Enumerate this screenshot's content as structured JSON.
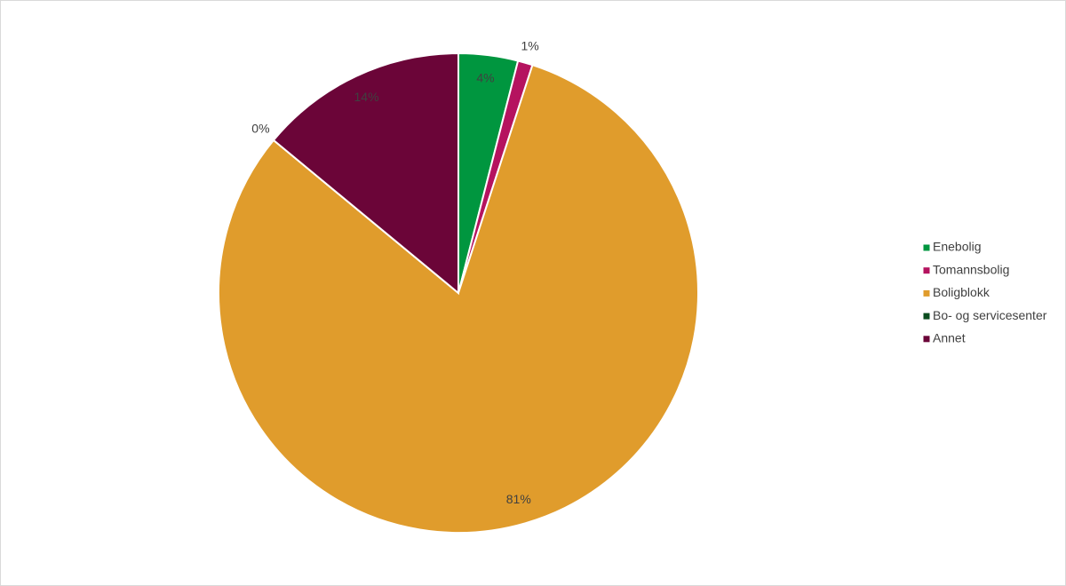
{
  "chart_data": {
    "type": "pie",
    "categories": [
      "Enebolig",
      "Tomannsbolig",
      "Boligblokk",
      "Bo- og servicesenter",
      "Annet"
    ],
    "values": [
      4,
      1,
      81,
      0,
      14
    ],
    "value_labels": [
      "4%",
      "1%",
      "81%",
      "0%",
      "14%"
    ],
    "colors": [
      "#00963f",
      "#b5135f",
      "#e09c2c",
      "#0b4d1f",
      "#6b0538"
    ],
    "legend": "right"
  }
}
